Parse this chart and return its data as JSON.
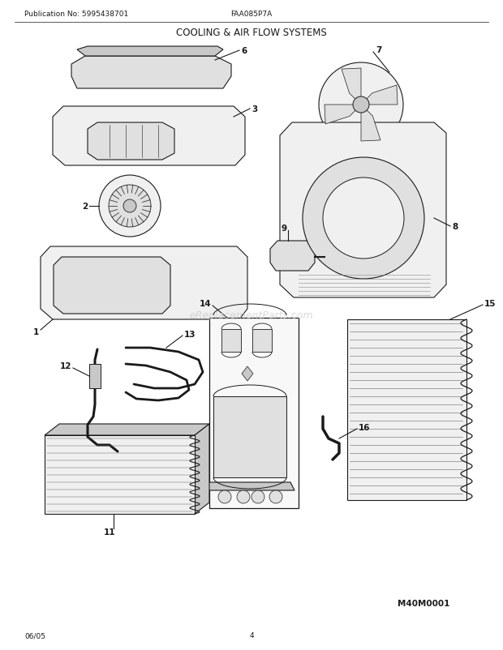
{
  "title": "COOLING & AIR FLOW SYSTEMS",
  "pub_no": "Publication No: 5995438701",
  "model": "FAA085P7A",
  "diagram_id": "M40M0001",
  "date": "06/05",
  "page": "4",
  "bg_color": "#ffffff",
  "lc": "#1a1a1a",
  "watermark": "eReplacementParts.com",
  "wm_color": "#c8c8c8",
  "fc_light": "#f0f0f0",
  "fc_mid": "#e0e0e0",
  "fc_dark": "#c8c8c8"
}
